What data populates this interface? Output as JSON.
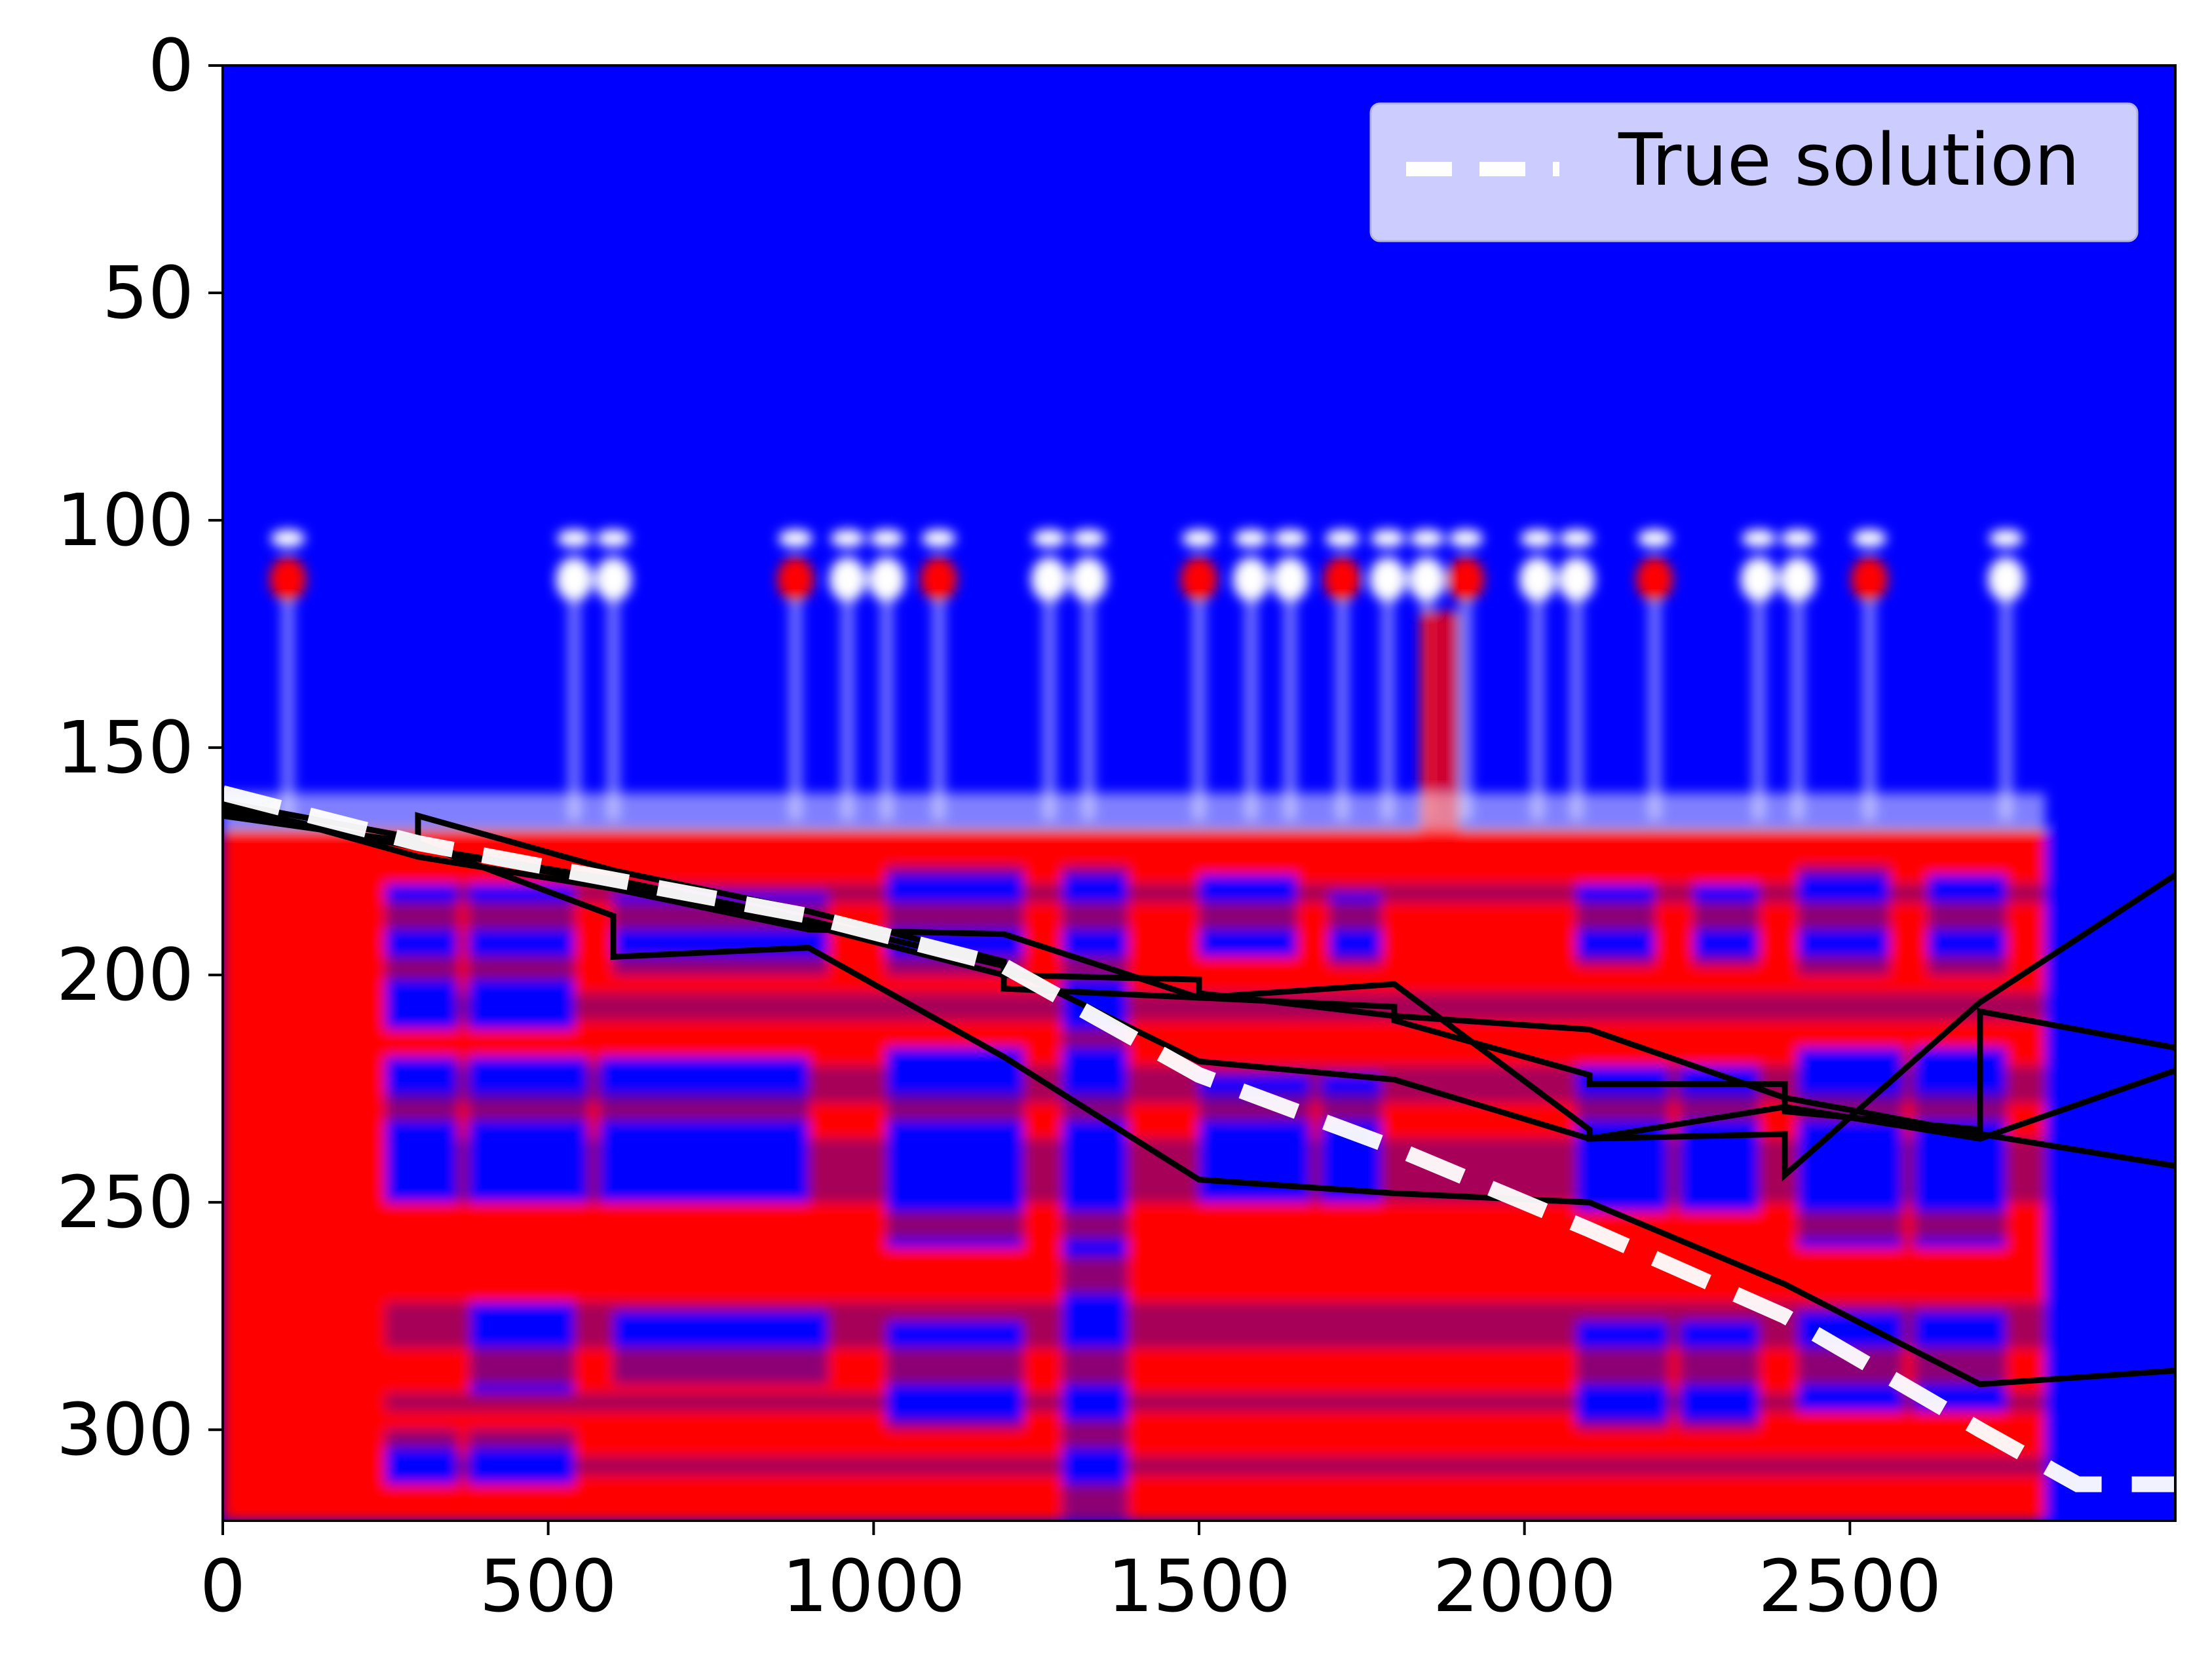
{
  "chart_data": {
    "type": "heatmap",
    "title": "",
    "xlabel": "",
    "ylabel": "",
    "xlim": [
      0,
      3000
    ],
    "ylim": [
      320,
      0
    ],
    "y_inverted": true,
    "grid": false,
    "xticks": [
      0,
      500,
      1000,
      1500,
      2000,
      2500
    ],
    "yticks": [
      0,
      50,
      100,
      150,
      200,
      250,
      300
    ],
    "xtick_labels": [
      "0",
      "500",
      "1000",
      "1500",
      "2000",
      "2500"
    ],
    "ytick_labels": [
      "0",
      "50",
      "100",
      "150",
      "200",
      "250",
      "300"
    ],
    "colormap": [
      "#0000ff",
      "#ffffff",
      "#ff0000"
    ],
    "heatmap_description_free_zone_below_y": 100,
    "legend": {
      "placement": "top-right",
      "entries": [
        "True solution"
      ]
    },
    "series": [
      {
        "name": "True solution",
        "style": "dashed",
        "color": "#ffffff",
        "x": [
          0,
          300,
          600,
          900,
          1200,
          1500,
          1800,
          2100,
          2400,
          2700,
          2850,
          3000
        ],
        "y": [
          160,
          171,
          179,
          187,
          198,
          222,
          238,
          256,
          275,
          300,
          312,
          312
        ]
      },
      {
        "style": "solid",
        "color": "#000000",
        "x": [
          0,
          300,
          300,
          600,
          900,
          1200,
          1200,
          1500,
          1800,
          1800,
          2100,
          2100,
          2400,
          2400,
          2700,
          2700,
          3000
        ],
        "y": [
          162,
          170,
          165,
          177,
          186,
          197,
          203,
          205,
          207,
          210,
          222,
          224,
          224,
          230,
          234,
          208,
          216
        ]
      },
      {
        "style": "solid",
        "color": "#000000",
        "x": [
          0,
          300,
          600,
          600,
          900,
          1200,
          1500,
          1800,
          2100,
          2400,
          2700,
          3000
        ],
        "y": [
          165,
          171,
          187,
          196,
          194,
          218,
          245,
          248,
          250,
          268,
          290,
          287
        ]
      },
      {
        "style": "solid",
        "color": "#000000",
        "x": [
          0,
          300,
          600,
          900,
          1200,
          1500,
          1800,
          2100,
          2100,
          2400,
          2400,
          2700,
          3000
        ],
        "y": [
          162,
          174,
          181,
          190,
          191,
          205,
          202,
          234,
          236,
          235,
          244,
          206,
          178
        ]
      },
      {
        "style": "solid",
        "color": "#000000",
        "x": [
          0,
          300,
          600,
          900,
          1200,
          1500,
          1800,
          2100,
          2400,
          2700,
          3000
        ],
        "y": [
          163,
          172,
          179,
          188,
          198,
          219,
          223,
          236,
          229,
          236,
          221
        ]
      },
      {
        "style": "solid",
        "color": "#000000",
        "x": [
          0,
          300,
          600,
          900,
          1200,
          1500,
          1500,
          1800,
          2100,
          2400,
          2700,
          3000
        ],
        "y": [
          164,
          172,
          180,
          189,
          200,
          201,
          204,
          209,
          212,
          227,
          235,
          242
        ]
      }
    ]
  }
}
